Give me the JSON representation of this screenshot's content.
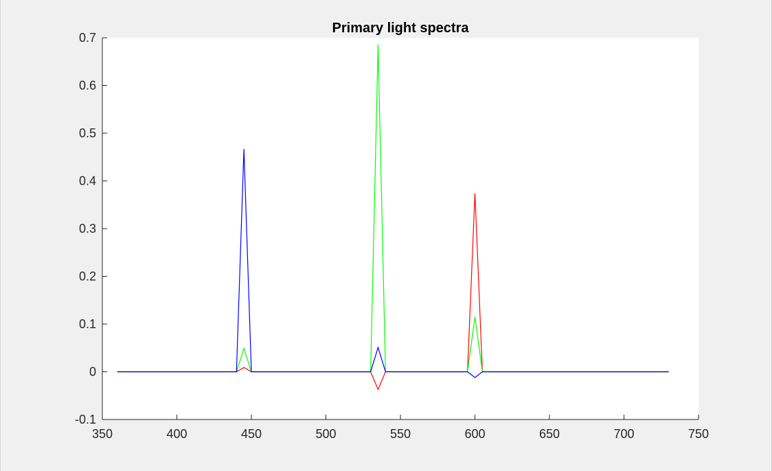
{
  "chart_data": {
    "type": "line",
    "title": "Primary light spectra",
    "xlabel": "",
    "ylabel": "",
    "xlim": [
      350,
      750
    ],
    "ylim": [
      -0.1,
      0.7
    ],
    "x_ticks": [
      "350",
      "400",
      "450",
      "500",
      "550",
      "600",
      "650",
      "700",
      "750"
    ],
    "y_ticks": [
      "-0.1",
      "0",
      "0.1",
      "0.2",
      "0.3",
      "0.4",
      "0.5",
      "0.6",
      "0.7"
    ],
    "grid": false,
    "legend": "none",
    "series": [
      {
        "color": "#ff0000",
        "x": [
          360,
          440,
          445,
          450,
          530,
          535,
          540,
          595,
          600,
          605,
          730
        ],
        "y": [
          0,
          0,
          0.009,
          0,
          0,
          -0.037,
          0,
          0,
          0.374,
          0,
          0
        ]
      },
      {
        "color": "#00ff00",
        "x": [
          360,
          440,
          445,
          450,
          530,
          535,
          540,
          595,
          600,
          605,
          730
        ],
        "y": [
          0,
          0,
          0.049,
          0,
          0,
          0.686,
          0,
          0,
          0.115,
          0,
          0
        ]
      },
      {
        "color": "#0000ff",
        "x": [
          360,
          440,
          445,
          450,
          530,
          535,
          540,
          595,
          600,
          605,
          730
        ],
        "y": [
          0,
          0,
          0.467,
          0,
          0,
          0.051,
          0,
          0,
          -0.012,
          0,
          0
        ]
      }
    ]
  }
}
